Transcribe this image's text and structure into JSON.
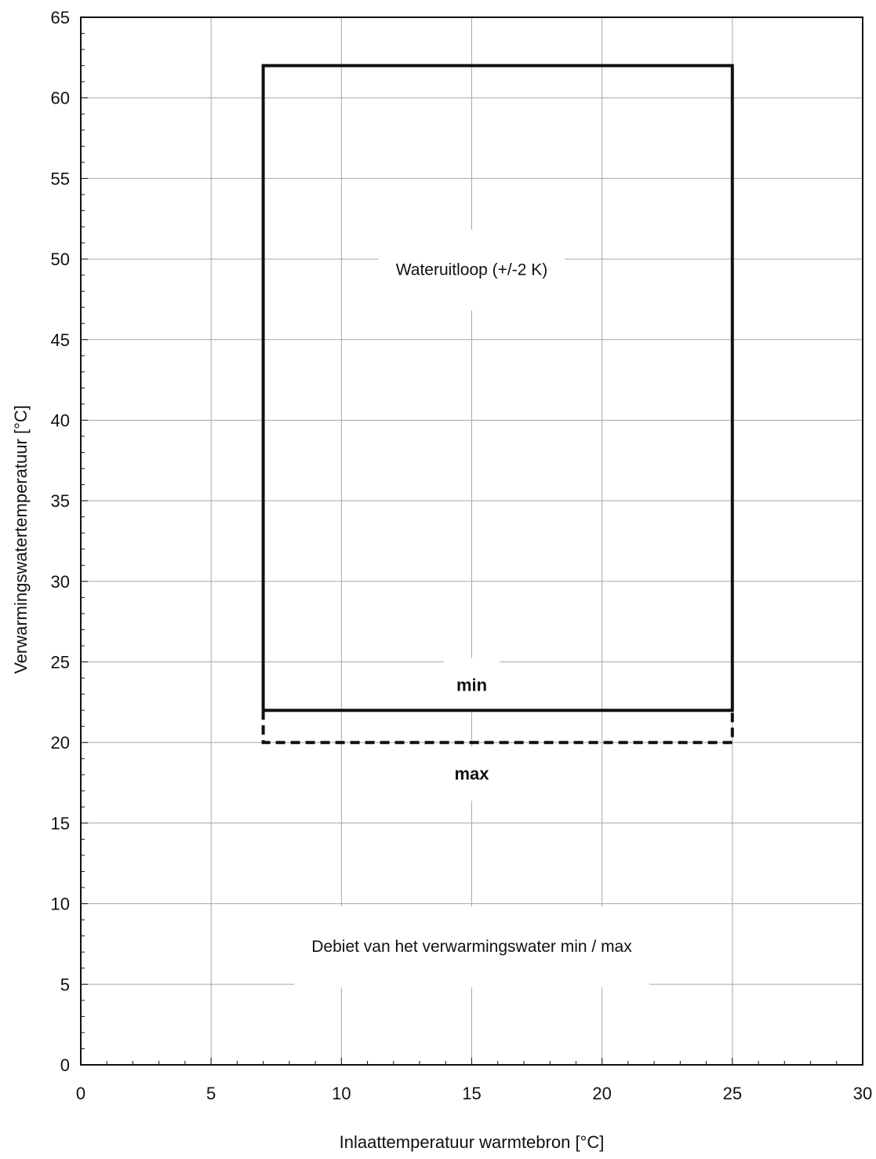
{
  "chart_data": {
    "type": "line",
    "xlabel": "Inlaattemperatuur warmtebron [°C]",
    "ylabel": "Verwarmingswatertemperatuur [°C]",
    "xlim": [
      0,
      30
    ],
    "ylim": [
      0,
      65
    ],
    "x_ticks": [
      0,
      5,
      10,
      15,
      20,
      25,
      30
    ],
    "y_ticks": [
      0,
      5,
      10,
      15,
      20,
      25,
      30,
      35,
      40,
      45,
      50,
      55,
      60,
      65
    ],
    "grid": true,
    "series": [
      {
        "name": "min",
        "style": "solid",
        "points": [
          [
            7,
            22
          ],
          [
            7,
            62
          ],
          [
            25,
            62
          ],
          [
            25,
            22
          ],
          [
            7,
            22
          ]
        ]
      },
      {
        "name": "max",
        "style": "dashed",
        "points": [
          [
            7,
            22
          ],
          [
            7,
            20
          ],
          [
            25,
            20
          ],
          [
            25,
            22
          ]
        ]
      }
    ],
    "annotations": [
      {
        "text": "Wateruitloop (+/-2 K)",
        "x": 15,
        "y": 49
      },
      {
        "text": "min",
        "x": 15,
        "y": 23.2
      },
      {
        "text": "max",
        "x": 15,
        "y": 17.7
      },
      {
        "text": "Debiet van het verwarmingswater min / max",
        "x": 15,
        "y": 7
      }
    ]
  }
}
